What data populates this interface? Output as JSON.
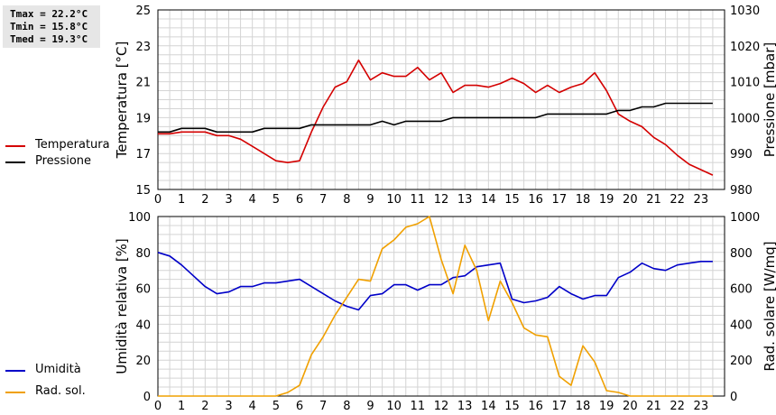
{
  "stats": {
    "tmax": "Tmax = 22.2°C",
    "tmin": "Tmin = 15.8°C",
    "tmed": "Tmed = 19.3°C"
  },
  "legend_top": [
    {
      "label": "Temperatura",
      "color": "#d40000"
    },
    {
      "label": "Pressione",
      "color": "#000000"
    }
  ],
  "legend_bottom": [
    {
      "label": "Umidità",
      "color": "#0000c8"
    },
    {
      "label": "Rad. sol.",
      "color": "#f0a000"
    }
  ],
  "chart_data": [
    {
      "type": "line",
      "x_ticks": [
        0,
        1,
        2,
        3,
        4,
        5,
        6,
        7,
        8,
        9,
        10,
        11,
        12,
        13,
        14,
        15,
        16,
        17,
        18,
        19,
        20,
        21,
        22,
        23
      ],
      "xlim": [
        0,
        24
      ],
      "grid": true,
      "ylabel": "Temperatura [°C]",
      "ylim": [
        15,
        25
      ],
      "y_ticks": [
        15,
        17,
        19,
        21,
        23,
        25
      ],
      "y2label": "Pressione [mbar]",
      "y2lim": [
        980,
        1030
      ],
      "y2_ticks": [
        980,
        990,
        1000,
        1010,
        1020,
        1030
      ],
      "series": [
        {
          "name": "Temperatura",
          "axis": "left",
          "color": "#d40000",
          "x": [
            0,
            0.5,
            1,
            1.5,
            2,
            2.5,
            3,
            3.5,
            4,
            4.5,
            5,
            5.5,
            6,
            6.5,
            7,
            7.5,
            8,
            8.5,
            9,
            9.5,
            10,
            10.5,
            11,
            11.5,
            12,
            12.5,
            13,
            13.5,
            14,
            14.5,
            15,
            15.5,
            16,
            16.5,
            17,
            17.5,
            18,
            18.5,
            19,
            19.5,
            20,
            20.5,
            21,
            21.5,
            22,
            22.5,
            23,
            23.5
          ],
          "values": [
            18.1,
            18.1,
            18.2,
            18.2,
            18.2,
            18.0,
            18.0,
            17.8,
            17.4,
            17.0,
            16.6,
            16.5,
            16.6,
            18.2,
            19.6,
            20.7,
            21.0,
            22.2,
            21.1,
            21.5,
            21.3,
            21.3,
            21.8,
            21.1,
            21.5,
            20.4,
            20.8,
            20.8,
            20.7,
            20.9,
            21.2,
            20.9,
            20.4,
            20.8,
            20.4,
            20.7,
            20.9,
            21.5,
            20.5,
            19.2,
            18.8,
            18.5,
            17.9,
            17.5,
            16.9,
            16.4,
            16.1,
            15.8
          ]
        },
        {
          "name": "Pressione",
          "axis": "right",
          "color": "#000000",
          "x": [
            0,
            0.5,
            1,
            1.5,
            2,
            2.5,
            3,
            3.5,
            4,
            4.5,
            5,
            5.5,
            6,
            6.5,
            7,
            7.5,
            8,
            8.5,
            9,
            9.5,
            10,
            10.5,
            11,
            11.5,
            12,
            12.5,
            13,
            13.5,
            14,
            14.5,
            15,
            15.5,
            16,
            16.5,
            17,
            17.5,
            18,
            18.5,
            19,
            19.5,
            20,
            20.5,
            21,
            21.5,
            22,
            22.5,
            23,
            23.5
          ],
          "values": [
            996,
            996,
            997,
            997,
            997,
            996,
            996,
            996,
            996,
            997,
            997,
            997,
            997,
            998,
            998,
            998,
            998,
            998,
            998,
            999,
            998,
            999,
            999,
            999,
            999,
            1000,
            1000,
            1000,
            1000,
            1000,
            1000,
            1000,
            1000,
            1001,
            1001,
            1001,
            1001,
            1001,
            1001,
            1002,
            1002,
            1003,
            1003,
            1004,
            1004,
            1004,
            1004,
            1004
          ]
        }
      ]
    },
    {
      "type": "line",
      "x_ticks": [
        0,
        1,
        2,
        3,
        4,
        5,
        6,
        7,
        8,
        9,
        10,
        11,
        12,
        13,
        14,
        15,
        16,
        17,
        18,
        19,
        20,
        21,
        22,
        23
      ],
      "xlim": [
        0,
        24
      ],
      "grid": true,
      "ylabel": "Umidità relativa [%]",
      "ylim": [
        0,
        100
      ],
      "y_ticks": [
        0,
        20,
        40,
        60,
        80,
        100
      ],
      "y2label": "Rad. solare [W/mq]",
      "y2lim": [
        0,
        1000
      ],
      "y2_ticks": [
        0,
        200,
        400,
        600,
        800,
        1000
      ],
      "series": [
        {
          "name": "Umidità",
          "axis": "left",
          "color": "#0000c8",
          "x": [
            0,
            0.5,
            1,
            1.5,
            2,
            2.5,
            3,
            3.5,
            4,
            4.5,
            5,
            5.5,
            6,
            6.5,
            7,
            7.5,
            8,
            8.5,
            9,
            9.5,
            10,
            10.5,
            11,
            11.5,
            12,
            12.5,
            13,
            13.5,
            14,
            14.5,
            15,
            15.5,
            16,
            16.5,
            17,
            17.5,
            18,
            18.5,
            19,
            19.5,
            20,
            20.5,
            21,
            21.5,
            22,
            22.5,
            23,
            23.5
          ],
          "values": [
            80,
            78,
            73,
            67,
            61,
            57,
            58,
            61,
            61,
            63,
            63,
            64,
            65,
            61,
            57,
            53,
            50,
            48,
            56,
            57,
            62,
            62,
            59,
            62,
            62,
            66,
            67,
            72,
            73,
            74,
            54,
            52,
            53,
            55,
            61,
            57,
            54,
            56,
            56,
            66,
            69,
            74,
            71,
            70,
            73,
            74,
            75,
            75
          ]
        },
        {
          "name": "Rad. sol.",
          "axis": "right",
          "color": "#f0a000",
          "x": [
            0,
            0.5,
            1,
            1.5,
            2,
            2.5,
            3,
            3.5,
            4,
            4.5,
            5,
            5.5,
            6,
            6.5,
            7,
            7.5,
            8,
            8.5,
            9,
            9.5,
            10,
            10.5,
            11,
            11.5,
            12,
            12.5,
            13,
            13.5,
            14,
            14.5,
            15,
            15.5,
            16,
            16.5,
            17,
            17.5,
            18,
            18.5,
            19,
            19.5,
            20,
            20.5,
            21,
            21.5,
            22,
            22.5,
            23,
            23.5
          ],
          "values": [
            0,
            0,
            0,
            0,
            0,
            0,
            0,
            0,
            0,
            0,
            0,
            20,
            60,
            230,
            330,
            450,
            550,
            650,
            640,
            820,
            870,
            940,
            960,
            1000,
            760,
            570,
            840,
            700,
            420,
            640,
            520,
            380,
            340,
            330,
            110,
            60,
            280,
            190,
            30,
            20,
            0,
            0,
            0,
            0,
            0,
            0,
            0,
            0
          ]
        }
      ]
    }
  ]
}
